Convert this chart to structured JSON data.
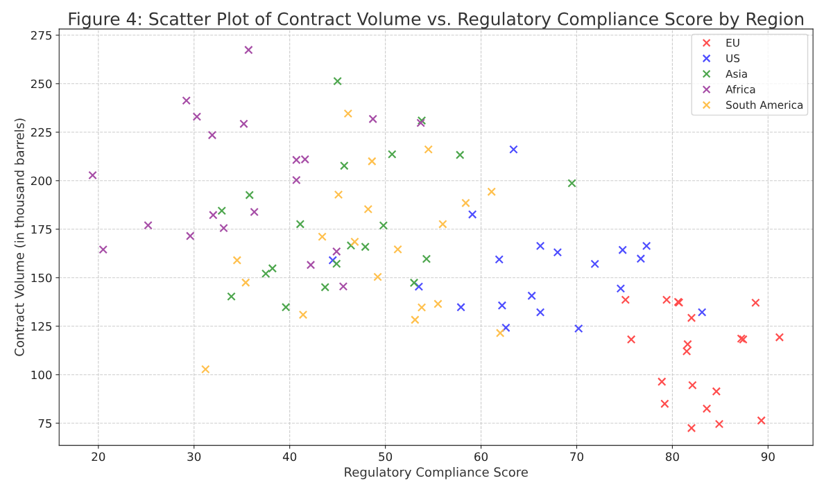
{
  "chart_data": {
    "type": "scatter",
    "title": "Figure 4: Scatter Plot of Contract Volume vs. Regulatory Compliance Score by Region",
    "xlabel": "Regulatory Compliance Score",
    "ylabel": "Contract Volume (in thousand barrels)",
    "xlim": [
      15.9,
      94.7
    ],
    "xticks": [
      20,
      30,
      40,
      50,
      60,
      70,
      80,
      90
    ],
    "ylim": [
      63.6,
      278.2
    ],
    "yticks": [
      75,
      100,
      125,
      150,
      175,
      200,
      225,
      250,
      275
    ],
    "grid": true,
    "legend": "top right",
    "marker": "cross",
    "series": [
      {
        "name": "EU",
        "color": "#ff4d4d",
        "x": [
          75.1,
          79.4,
          80.6,
          80.7,
          75.7,
          82.0,
          81.6,
          81.5,
          88.7,
          91.2,
          87.2,
          87.4,
          78.9,
          79.2,
          82.1,
          84.6,
          83.6,
          82.0,
          84.9,
          89.3
        ],
        "values": [
          138.6,
          138.6,
          137.5,
          137.2,
          118.2,
          129.3,
          115.7,
          112.1,
          137.1,
          119.3,
          118.6,
          118.2,
          96.4,
          85.0,
          94.6,
          91.4,
          82.5,
          72.5,
          74.6,
          76.4
        ]
      },
      {
        "name": "US",
        "color": "#4d4dff",
        "x": [
          63.4,
          59.1,
          61.9,
          66.2,
          68.0,
          71.9,
          74.8,
          76.7,
          77.3,
          74.6,
          57.9,
          62.2,
          65.3,
          66.2,
          62.6,
          70.2,
          83.1,
          53.5,
          44.5
        ],
        "values": [
          216.1,
          182.6,
          159.4,
          166.4,
          163.1,
          157.1,
          164.3,
          159.8,
          166.4,
          144.4,
          134.8,
          135.7,
          140.7,
          132.2,
          124.2,
          123.8,
          132.2,
          145.4,
          159.0
        ]
      },
      {
        "name": "Asia",
        "color": "#4da64d",
        "x": [
          45.0,
          53.8,
          57.8,
          50.7,
          45.7,
          69.5,
          35.8,
          32.9,
          41.1,
          49.8,
          47.9,
          46.4,
          54.3,
          44.9,
          38.2,
          37.5,
          33.9,
          39.6,
          43.7,
          53.0
        ],
        "values": [
          251.3,
          231.0,
          213.3,
          213.6,
          207.7,
          198.7,
          192.6,
          184.5,
          177.6,
          176.9,
          165.9,
          166.6,
          159.7,
          157.2,
          154.8,
          152.1,
          140.3,
          134.8,
          145.1,
          147.4
        ]
      },
      {
        "name": "Africa",
        "color": "#a64da6",
        "x": [
          35.7,
          29.2,
          30.3,
          35.2,
          31.9,
          19.4,
          40.7,
          41.6,
          40.7,
          36.3,
          32.0,
          33.1,
          25.2,
          29.6,
          20.5,
          42.2,
          44.9,
          45.6,
          48.7,
          53.7
        ],
        "values": [
          267.4,
          241.3,
          233.0,
          229.3,
          223.5,
          202.8,
          210.7,
          211.0,
          200.3,
          183.9,
          182.3,
          175.6,
          177.0,
          171.5,
          164.5,
          156.6,
          163.5,
          145.5,
          231.8,
          229.8
        ]
      },
      {
        "name": "South America",
        "color": "#ffc04d",
        "x": [
          46.1,
          54.5,
          48.6,
          45.1,
          48.2,
          61.1,
          58.4,
          56.0,
          43.4,
          46.8,
          51.3,
          34.5,
          35.4,
          41.4,
          53.1,
          53.8,
          55.5,
          31.2,
          62.0,
          49.2
        ],
        "values": [
          234.6,
          216.1,
          210.0,
          192.8,
          185.3,
          194.3,
          188.5,
          177.6,
          171.1,
          168.5,
          164.6,
          159.0,
          147.5,
          130.9,
          128.3,
          134.7,
          136.5,
          102.8,
          121.5,
          150.4
        ]
      }
    ]
  }
}
